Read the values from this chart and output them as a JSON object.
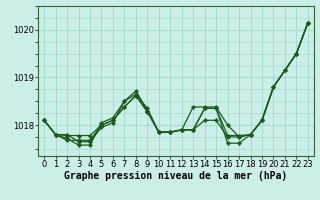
{
  "background_color": "#cceee8",
  "grid_color": "#99ddcc",
  "line_color": "#1a5c1a",
  "marker_color": "#1a5c1a",
  "xlabel": "Graphe pression niveau de la mer (hPa)",
  "xlabel_fontsize": 7,
  "tick_fontsize": 6,
  "ytick_labels": [
    1018,
    1019,
    1020
  ],
  "ylim": [
    1017.35,
    1020.5
  ],
  "xlim": [
    -0.5,
    23.5
  ],
  "series": [
    [
      1018.1,
      1017.8,
      1017.8,
      1017.65,
      1017.65,
      1017.95,
      1018.05,
      1018.5,
      1018.65,
      1018.35,
      1017.85,
      1017.85,
      1017.9,
      1017.9,
      1018.1,
      1018.1,
      1017.75,
      1017.75,
      1017.8,
      1018.1,
      1018.8,
      1019.15,
      1019.5,
      1020.15
    ],
    [
      1018.1,
      1017.8,
      1017.72,
      1017.58,
      1017.58,
      1018.05,
      1018.15,
      1018.5,
      1018.72,
      1018.3,
      1017.85,
      1017.85,
      1017.9,
      1018.38,
      1018.38,
      1018.38,
      1018.0,
      1017.75,
      1017.8,
      1018.1,
      1018.8,
      1019.15,
      1019.5,
      1020.15
    ],
    [
      1018.1,
      1017.8,
      1017.68,
      1017.68,
      1017.68,
      1018.0,
      1018.1,
      1018.38,
      1018.62,
      1018.28,
      1017.85,
      1017.85,
      1017.9,
      1017.9,
      1018.35,
      1018.35,
      1017.62,
      1017.62,
      1017.8,
      1018.1,
      1018.8,
      1019.15,
      1019.5,
      1020.15
    ],
    [
      1018.1,
      1017.8,
      1017.78,
      1017.78,
      1017.78,
      1018.0,
      1018.1,
      1018.38,
      1018.62,
      1018.28,
      1017.85,
      1017.85,
      1017.9,
      1017.9,
      1018.35,
      1018.35,
      1017.78,
      1017.78,
      1017.8,
      1018.1,
      1018.8,
      1019.15,
      1019.5,
      1020.15
    ]
  ],
  "xtick_labels": [
    "0",
    "1",
    "2",
    "3",
    "4",
    "5",
    "6",
    "7",
    "8",
    "9",
    "10",
    "11",
    "12",
    "13",
    "14",
    "15",
    "16",
    "17",
    "18",
    "19",
    "20",
    "21",
    "22",
    "23"
  ]
}
